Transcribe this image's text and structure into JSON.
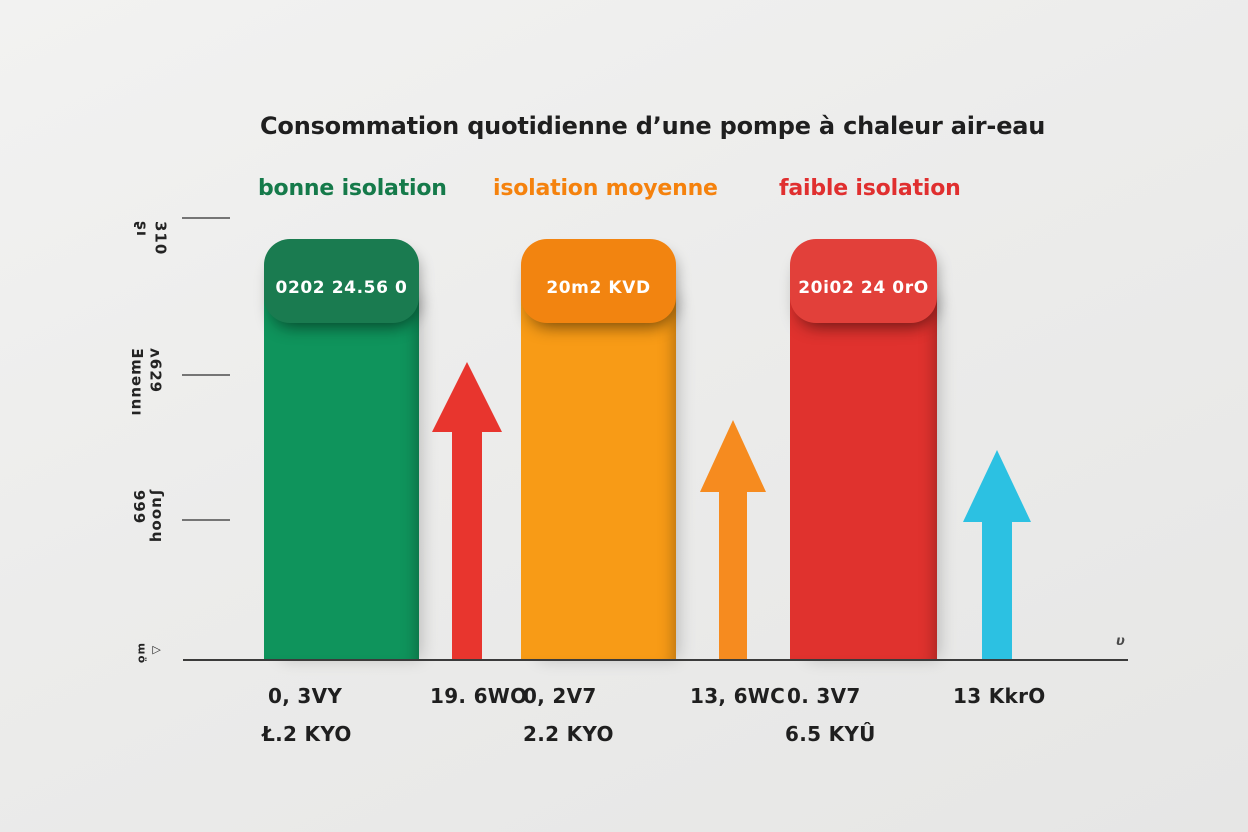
{
  "chart_data": {
    "type": "bar",
    "title": "Consommation quotidienne d’une pompe à chaleur air-eau",
    "categories": [
      "bonne isolation",
      "isolation moyenne",
      "faible isolation"
    ],
    "legend_position": "none",
    "grid": false,
    "bars": [
      {
        "category": "bonne isolation",
        "badge_value": "0202 24.56 0",
        "color": "#0f945c",
        "badge_color": "#1a7b50",
        "annotations": [
          "0, 3VY",
          "Ł.2 KYO"
        ]
      },
      {
        "category": "isolation moyenne",
        "badge_value": "20m2 KVD",
        "color": "#f89b16",
        "badge_color": "#f28410",
        "annotations": [
          "0, 2V7",
          "2.2 KYO"
        ]
      },
      {
        "category": "faible isolation",
        "badge_value": "20i02 24 0rO",
        "color": "#e0322e",
        "badge_color": "#e2403a",
        "annotations": [
          "0. 3V7",
          "6.5 KYÛ"
        ]
      }
    ],
    "arrows": [
      {
        "color": "#e8352e",
        "direction": "up",
        "annotation": "19. 6WO"
      },
      {
        "color": "#f68b1f",
        "direction": "up",
        "annotation": "13, 6WC"
      },
      {
        "color": "#2cc1e2",
        "direction": "up",
        "annotation": "13 KkrO"
      }
    ],
    "y_axis": {
      "tick_labels": [
        [
          "ʂı",
          "310"
        ],
        [
          "Ǝɯǝuuı",
          "ʌ629"
        ],
        [
          "999",
          "ʃuooɥ"
        ],
        [
          "ɯö",
          "▷"
        ]
      ],
      "end_label": "υ"
    },
    "colors": {
      "green": "#0f945c",
      "green-badge": "#1a7b50",
      "orange": "#f89b16",
      "orange-badge": "#f28410",
      "red": "#e0322e",
      "red-badge": "#e2403a",
      "arrow-red": "#e8352e",
      "arrow-orange": "#f68b1f",
      "arrow-cyan": "#2cc1e2",
      "category-green": "#157a4a",
      "category-orange": "#f5820d",
      "category-red": "#e02f2f",
      "text-dark": "#1f1f1f"
    }
  }
}
